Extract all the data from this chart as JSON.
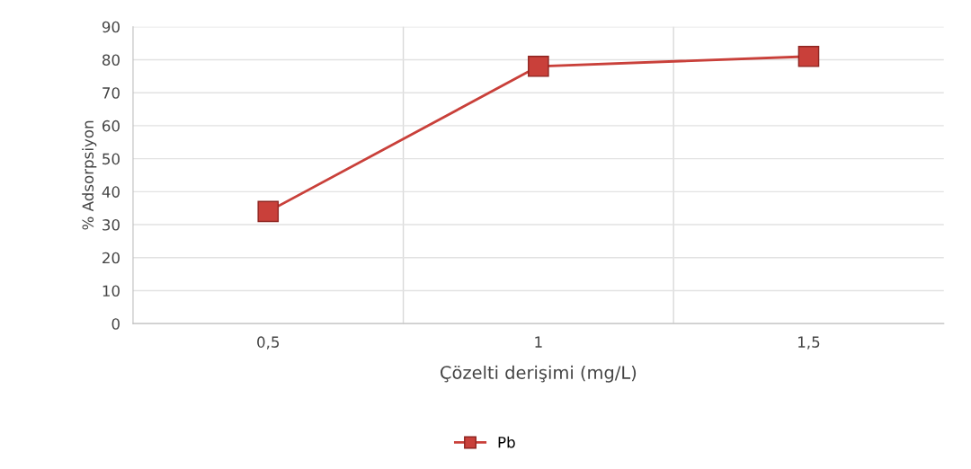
{
  "chart_data": {
    "type": "line",
    "xlabel": "Çözelti derişimi (mg/L)",
    "ylabel": "% Adsorpsiyon",
    "categories": [
      "0,5",
      "1",
      "1,5"
    ],
    "series": [
      {
        "name": "Pb",
        "color": "#c9403a",
        "values": [
          34,
          78,
          81
        ]
      }
    ],
    "ylim": [
      0,
      90
    ],
    "yticks": [
      0,
      10,
      20,
      30,
      40,
      50,
      60,
      70,
      80,
      90
    ],
    "grid": true,
    "legend": "bottom",
    "marker": "square",
    "line_style": "solid"
  }
}
